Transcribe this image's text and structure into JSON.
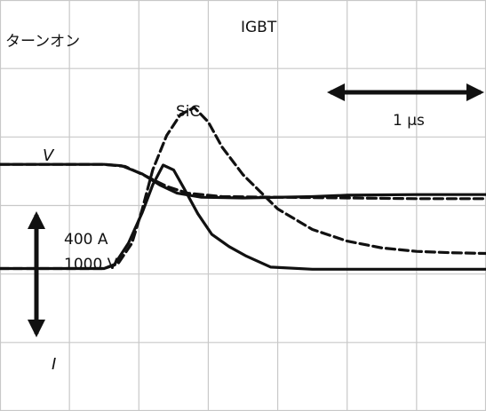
{
  "chart_data": {
    "type": "line",
    "title": "ターンオン",
    "grid": true,
    "annotations": {
      "time_scale": "1 μs",
      "current_scale": "400 A",
      "voltage_scale": "1000 V",
      "voltage_trace_label": "V",
      "current_trace_label": "I"
    },
    "series": [
      {
        "name": "SiC",
        "style": "solid",
        "quantity": "V",
        "x": [
          0.0,
          1.5,
          1.75,
          2.05,
          2.3,
          2.55,
          2.9,
          3.5,
          4.5,
          5.0,
          6.0,
          7.0
        ],
        "y": [
          0.6,
          0.6,
          0.58,
          0.46,
          0.3,
          0.18,
          0.12,
          0.11,
          0.13,
          0.15,
          0.16,
          0.16
        ]
      },
      {
        "name": "IGBT",
        "style": "dashed",
        "quantity": "V",
        "x": [
          0.0,
          1.5,
          1.8,
          2.1,
          2.4,
          2.7,
          3.2,
          4.0,
          5.0,
          6.0,
          7.0
        ],
        "y": [
          0.6,
          0.6,
          0.57,
          0.43,
          0.28,
          0.18,
          0.13,
          0.12,
          0.11,
          0.1,
          0.1
        ]
      },
      {
        "name": "SiC",
        "style": "solid",
        "quantity": "I",
        "x": [
          0.0,
          1.5,
          1.65,
          1.85,
          2.05,
          2.2,
          2.35,
          2.5,
          2.65,
          2.85,
          3.05,
          3.3,
          3.55,
          3.9,
          4.5,
          5.0,
          6.0,
          7.0
        ],
        "y": [
          -0.92,
          -0.92,
          -0.86,
          -0.55,
          -0.1,
          0.3,
          0.59,
          0.52,
          0.25,
          -0.12,
          -0.42,
          -0.6,
          -0.74,
          -0.9,
          -0.93,
          -0.93,
          -0.93,
          -0.93
        ]
      },
      {
        "name": "IGBT",
        "style": "dashed",
        "quantity": "I",
        "x": [
          0.0,
          1.5,
          1.7,
          1.9,
          2.05,
          2.2,
          2.4,
          2.6,
          2.8,
          3.0,
          3.2,
          3.5,
          4.0,
          4.5,
          5.0,
          5.5,
          6.0,
          6.5,
          7.0
        ],
        "y": [
          -0.92,
          -0.92,
          -0.85,
          -0.55,
          -0.05,
          0.52,
          1.02,
          1.33,
          1.43,
          1.22,
          0.85,
          0.45,
          -0.05,
          -0.35,
          -0.52,
          -0.62,
          -0.67,
          -0.69,
          -0.7
        ]
      }
    ],
    "text_labels": {
      "sic": "SiC",
      "igbt": "IGBT"
    }
  }
}
